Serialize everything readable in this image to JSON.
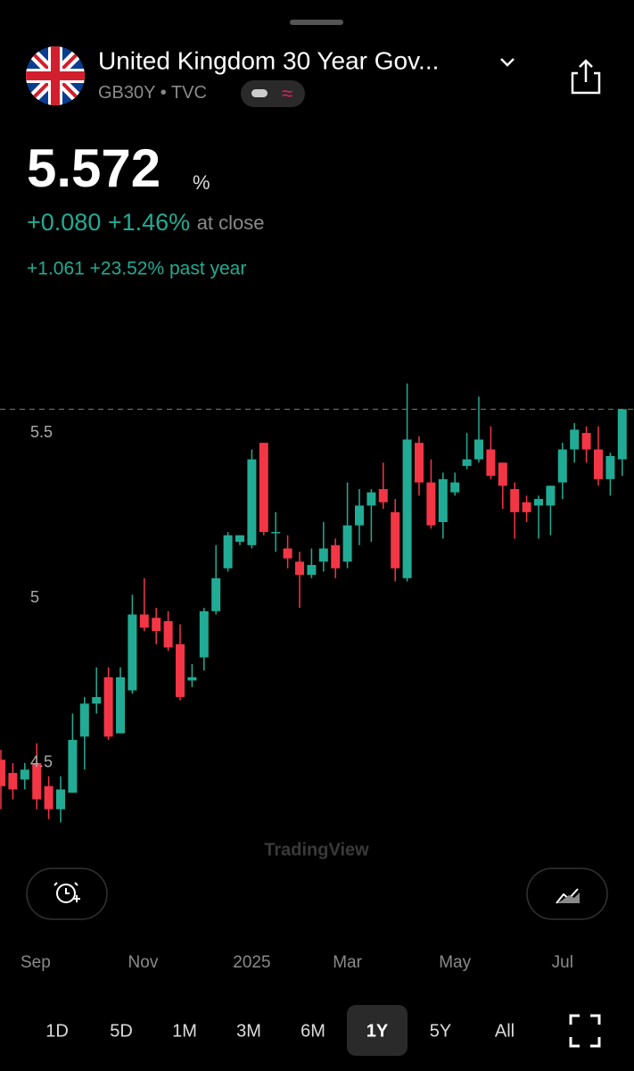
{
  "header": {
    "title": "United Kingdom 30 Year Gov...",
    "symbol": "GB30Y",
    "separator": "•",
    "exchange": "TVC",
    "badge": "≈"
  },
  "quote": {
    "price": "5.572",
    "unit": "%",
    "change": "+0.080 +1.46%",
    "change_note": "at close",
    "year_change": "+1.061 +23.52% past year"
  },
  "chart_data": {
    "type": "candlestick",
    "watermark": "TradingView",
    "up_color": "#22ab94",
    "down_color": "#f23645",
    "last_value": 5.572,
    "open": [
      4.51,
      4.47,
      4.45,
      4.5,
      4.43,
      4.36,
      4.41,
      4.58,
      4.68,
      4.76,
      4.59,
      4.72,
      4.95,
      4.94,
      4.93,
      4.86,
      4.75,
      4.82,
      4.96,
      5.09,
      5.17,
      5.16,
      5.47,
      5.2,
      5.15,
      5.11,
      5.07,
      5.11,
      5.16,
      5.11,
      5.22,
      5.28,
      5.33,
      5.26,
      5.06,
      5.47,
      5.35,
      5.23,
      5.32,
      5.4,
      5.42,
      5.45,
      5.41,
      5.33,
      5.29,
      5.28,
      5.28,
      5.35,
      5.45,
      5.5,
      5.45,
      5.36,
      5.42
    ],
    "high": [
      4.54,
      4.5,
      4.5,
      4.56,
      4.46,
      4.46,
      4.65,
      4.7,
      4.79,
      4.79,
      4.79,
      5.01,
      5.06,
      4.97,
      4.96,
      4.92,
      4.8,
      4.97,
      5.16,
      5.2,
      5.19,
      5.45,
      5.47,
      5.26,
      5.19,
      5.14,
      5.15,
      5.23,
      5.18,
      5.35,
      5.33,
      5.33,
      5.41,
      5.3,
      5.65,
      5.49,
      5.42,
      5.38,
      5.38,
      5.5,
      5.61,
      5.52,
      5.41,
      5.35,
      5.31,
      5.31,
      5.34,
      5.47,
      5.53,
      5.52,
      5.52,
      5.44,
      5.572
    ],
    "low": [
      4.36,
      4.39,
      4.42,
      4.36,
      4.33,
      4.32,
      4.41,
      4.48,
      4.65,
      4.57,
      4.59,
      4.71,
      4.9,
      4.86,
      4.84,
      4.69,
      4.73,
      4.78,
      4.95,
      5.08,
      5.16,
      5.15,
      5.19,
      5.14,
      5.09,
      4.97,
      5.06,
      5.08,
      5.06,
      5.09,
      5.16,
      5.17,
      5.27,
      5.05,
      5.05,
      5.31,
      5.21,
      5.18,
      5.31,
      5.39,
      5.41,
      5.36,
      5.27,
      5.18,
      5.23,
      5.18,
      5.19,
      5.3,
      5.41,
      5.41,
      5.34,
      5.31,
      5.37
    ],
    "close": [
      4.43,
      4.42,
      4.48,
      4.39,
      4.36,
      4.42,
      4.57,
      4.68,
      4.7,
      4.58,
      4.76,
      4.95,
      4.91,
      4.9,
      4.85,
      4.7,
      4.76,
      4.96,
      5.06,
      5.19,
      5.19,
      5.42,
      5.2,
      5.2,
      5.12,
      5.07,
      5.1,
      5.15,
      5.09,
      5.22,
      5.28,
      5.32,
      5.29,
      5.09,
      5.48,
      5.35,
      5.22,
      5.36,
      5.35,
      5.42,
      5.48,
      5.37,
      5.34,
      5.26,
      5.26,
      5.3,
      5.34,
      5.45,
      5.51,
      5.45,
      5.36,
      5.43,
      5.572
    ],
    "ylim": [
      4.27,
      5.703
    ],
    "yticks": [
      4.5,
      5,
      5.5
    ],
    "xticks": [
      {
        "value": 2.9,
        "label": "Sep"
      },
      {
        "value": 11.9,
        "label": "Nov"
      },
      {
        "value": 21,
        "label": "2025"
      },
      {
        "value": 29,
        "label": "Mar"
      },
      {
        "value": 38,
        "label": "May"
      },
      {
        "value": 47,
        "label": "Jul"
      }
    ]
  },
  "ranges": {
    "options": [
      "1D",
      "5D",
      "1M",
      "3M",
      "6M",
      "1Y",
      "5Y",
      "All"
    ],
    "selected_index": 5
  }
}
